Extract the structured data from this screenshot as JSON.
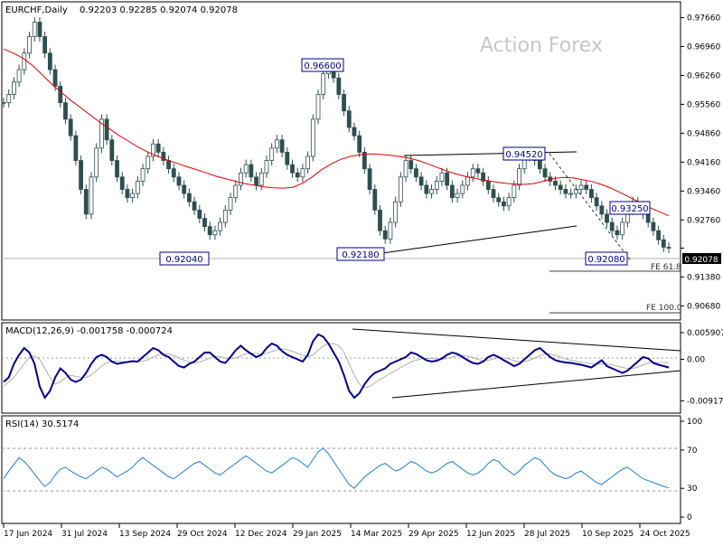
{
  "chart_data": [
    {
      "type": "candlestick",
      "symbol": "EURCHF,Daily",
      "ohlc_text": "0.92203 0.92285 0.92074 0.92078",
      "watermark": "Action Forex",
      "y_ticks": [
        "0.97660",
        "0.96960",
        "0.96260",
        "0.95560",
        "0.94860",
        "0.94160",
        "0.93460",
        "0.92760",
        "0.92078",
        "0.91380",
        "0.90680"
      ],
      "ylim": [
        0.9038,
        0.98
      ],
      "last_price": "0.92078",
      "last_value": 0.92078,
      "series": [
        {
          "name": "EURCHF",
          "values": [
            0.956,
            0.958,
            0.961,
            0.964,
            0.968,
            0.972,
            0.9755,
            0.972,
            0.968,
            0.964,
            0.96,
            0.956,
            0.952,
            0.948,
            0.942,
            0.935,
            0.929,
            0.938,
            0.945,
            0.952,
            0.947,
            0.942,
            0.938,
            0.935,
            0.933,
            0.934,
            0.937,
            0.94,
            0.943,
            0.946,
            0.944,
            0.942,
            0.94,
            0.938,
            0.936,
            0.934,
            0.932,
            0.93,
            0.928,
            0.926,
            0.924,
            0.925,
            0.927,
            0.93,
            0.933,
            0.936,
            0.939,
            0.941,
            0.938,
            0.936,
            0.939,
            0.942,
            0.945,
            0.947,
            0.944,
            0.941,
            0.939,
            0.938,
            0.94,
            0.943,
            0.952,
            0.958,
            0.963,
            0.965,
            0.962,
            0.958,
            0.954,
            0.95,
            0.948,
            0.944,
            0.94,
            0.935,
            0.93,
            0.925,
            0.923,
            0.927,
            0.932,
            0.938,
            0.942,
            0.94,
            0.938,
            0.936,
            0.934,
            0.935,
            0.937,
            0.939,
            0.936,
            0.933,
            0.934,
            0.936,
            0.938,
            0.94,
            0.939,
            0.937,
            0.935,
            0.933,
            0.932,
            0.931,
            0.933,
            0.936,
            0.94,
            0.943,
            0.944,
            0.942,
            0.94,
            0.938,
            0.937,
            0.936,
            0.935,
            0.934,
            0.934,
            0.935,
            0.936,
            0.935,
            0.933,
            0.931,
            0.929,
            0.927,
            0.925,
            0.924,
            0.927,
            0.93,
            0.932,
            0.931,
            0.929,
            0.927,
            0.925,
            0.9228,
            0.921,
            0.9208
          ]
        }
      ],
      "ma_values": [
        0.969,
        0.968,
        0.9668,
        0.965,
        0.9628,
        0.9605,
        0.9585,
        0.9565,
        0.9548,
        0.953,
        0.9512,
        0.9496,
        0.948,
        0.9466,
        0.9452,
        0.944,
        0.943,
        0.9421,
        0.9413,
        0.9405,
        0.9398,
        0.939,
        0.9382,
        0.9376,
        0.937,
        0.9364,
        0.936,
        0.9356,
        0.9354,
        0.9353,
        0.9355,
        0.9365,
        0.938,
        0.9398,
        0.9412,
        0.9423,
        0.943,
        0.9434,
        0.9436,
        0.9435,
        0.9433,
        0.943,
        0.9426,
        0.942,
        0.9412,
        0.9403,
        0.9394,
        0.9387,
        0.9381,
        0.9376,
        0.9372,
        0.9368,
        0.9365,
        0.9363,
        0.9362,
        0.9364,
        0.937,
        0.9376,
        0.9379,
        0.9378,
        0.9374,
        0.9369,
        0.9362,
        0.9353,
        0.9342,
        0.933,
        0.9318,
        0.9306,
        0.9296,
        0.9286
      ],
      "annotations": [
        "0.96600",
        "0.92040",
        "0.92180",
        "0.94520",
        "0.93250",
        "0.92080",
        "FE 61.8",
        "FE 100.0"
      ],
      "fe_levels": [
        0.918,
        0.9095
      ],
      "x_ticks": [
        "17 Jun 2024",
        "31 Jul 2024",
        "13 Sep 2024",
        "29 Oct 2024",
        "12 Dec 2024",
        "29 Jan 2025",
        "14 Mar 2025",
        "29 Apr 2025",
        "12 Jun 2025",
        "28 Jul 2025",
        "10 Sep 2025",
        "24 Oct 2025"
      ]
    },
    {
      "type": "line",
      "title": "MACD(12,26,9) -0.001758 -0.000724",
      "y_ticks": [
        "0.005907",
        "0.00",
        "-0.009175"
      ],
      "ylim": [
        -0.0115,
        0.0075
      ],
      "series": [
        {
          "values": [
            -0.005,
            -0.004,
            -0.001,
            0.001,
            0.0025,
            0.0015,
            -0.001,
            -0.006,
            -0.0085,
            -0.007,
            -0.004,
            -0.002,
            -0.003,
            -0.0045,
            -0.005,
            -0.0045,
            -0.003,
            -0.001,
            0.0005,
            0.001,
            0.0005,
            -0.0005,
            -0.001,
            -0.0008,
            -0.0006,
            -0.0004,
            -0.0005,
            0.0005,
            0.0015,
            0.0025,
            0.002,
            0.001,
            0.0005,
            -0.0005,
            -0.0015,
            -0.0018,
            -0.001,
            -0.0005,
            0.0005,
            0.0015,
            0.0015,
            0.0005,
            -0.0005,
            -0.0008,
            0.0005,
            0.002,
            0.003,
            0.002,
            0.0012,
            0.0005,
            0.001,
            0.0025,
            0.0035,
            0.003,
            0.0018,
            0.001,
            0.0005,
            0.0,
            -0.0005,
            0.001,
            0.004,
            0.0055,
            0.005,
            0.0035,
            0.0015,
            -0.0005,
            -0.0035,
            -0.007,
            -0.0085,
            -0.0075,
            -0.0055,
            -0.004,
            -0.003,
            -0.0025,
            -0.002,
            -0.001,
            -0.0005,
            0.0,
            0.0005,
            0.0015,
            0.0012,
            0.0005,
            -0.0002,
            -0.0005,
            -0.0003,
            0.0002,
            0.001,
            0.0015,
            0.0012,
            0.0005,
            -0.0002,
            -0.0008,
            -0.001,
            -0.0005,
            0.0005,
            0.001,
            0.0005,
            -0.0002,
            -0.0008,
            -0.0015,
            -0.001,
            0.0,
            0.001,
            0.002,
            0.0025,
            0.0015,
            0.0005,
            -0.0002,
            -0.0005,
            -0.0007,
            -0.0008,
            -0.001,
            -0.0012,
            -0.0015,
            -0.0018,
            -0.001,
            -0.0002,
            -0.0015,
            -0.002,
            -0.0025,
            -0.003,
            -0.0025,
            -0.0015,
            -0.0005,
            0.0005,
            0.0002,
            -0.0008,
            -0.0012,
            -0.0015,
            -0.0018
          ]
        },
        {
          "values": [
            -0.006,
            -0.005,
            -0.004,
            -0.0025,
            -0.001,
            0.0005,
            0.0008,
            0.0,
            -0.002,
            -0.004,
            -0.0055,
            -0.005,
            -0.004,
            -0.0035,
            -0.0038,
            -0.004,
            -0.004,
            -0.0035,
            -0.0025,
            -0.0015,
            -0.0008,
            -0.0004,
            -0.0004,
            -0.0005,
            -0.0006,
            -0.0006,
            -0.0005,
            -0.0004,
            -0.0001,
            0.0005,
            0.001,
            0.0013,
            0.0012,
            0.0008,
            0.0003,
            -0.0002,
            -0.0006,
            -0.0008,
            -0.0006,
            -0.0002,
            0.0003,
            0.0007,
            0.0006,
            0.0003,
            0.0001,
            0.0003,
            0.0008,
            0.0012,
            0.0014,
            0.0013,
            0.0012,
            0.0013,
            0.0017,
            0.0021,
            0.0023,
            0.0021,
            0.0018,
            0.0013,
            0.0009,
            0.0006,
            0.001,
            0.002,
            0.003,
            0.0035,
            0.0035,
            0.003,
            0.0015,
            -0.001,
            -0.0035,
            -0.0055,
            -0.0062,
            -0.006,
            -0.0052,
            -0.0044,
            -0.0038,
            -0.0031,
            -0.0025,
            -0.0018,
            -0.0012,
            -0.0006,
            -0.0002,
            0.0001,
            0.0002,
            0.0002,
            0.0001,
            0.0,
            0.0002,
            0.0005,
            0.0008,
            0.0009,
            0.0007,
            0.0004,
            0.0,
            -0.0003,
            -0.0002,
            0.0001,
            0.0003,
            0.0003,
            0.0001,
            -0.0003,
            -0.0005,
            -0.0005,
            -0.0002,
            0.0003,
            0.0008,
            0.0012,
            0.0012,
            0.0009,
            0.0005,
            0.0001,
            -0.0002,
            -0.0004,
            -0.0006,
            -0.0008,
            -0.001,
            -0.0011,
            -0.001,
            -0.001,
            -0.0012,
            -0.0015,
            -0.0018,
            -0.002,
            -0.002,
            -0.0017,
            -0.0012,
            -0.0008,
            -0.0007,
            -0.0007,
            -0.0007,
            -0.0007
          ]
        }
      ]
    },
    {
      "type": "line",
      "title": "RSI(14) 30.5174",
      "y_ticks": [
        "100",
        "70",
        "30",
        "0"
      ],
      "ylim": [
        0,
        100
      ],
      "series": [
        {
          "values": [
            40,
            48,
            55,
            62,
            58,
            52,
            45,
            38,
            32,
            36,
            44,
            50,
            52,
            48,
            45,
            42,
            40,
            44,
            48,
            52,
            50,
            46,
            42,
            45,
            48,
            52,
            58,
            62,
            58,
            54,
            50,
            46,
            42,
            40,
            44,
            48,
            52,
            56,
            58,
            54,
            50,
            46,
            44,
            48,
            52,
            56,
            60,
            64,
            60,
            56,
            52,
            48,
            46,
            50,
            54,
            58,
            62,
            60,
            56,
            52,
            60,
            68,
            72,
            66,
            58,
            50,
            42,
            34,
            30,
            36,
            42,
            46,
            50,
            54,
            56,
            52,
            48,
            50,
            54,
            58,
            56,
            52,
            48,
            46,
            48,
            52,
            56,
            58,
            54,
            50,
            46,
            44,
            46,
            50,
            56,
            60,
            58,
            52,
            48,
            44,
            48,
            54,
            58,
            62,
            60,
            54,
            48,
            44,
            42,
            40,
            42,
            46,
            48,
            44,
            40,
            36,
            34,
            38,
            42,
            46,
            50,
            52,
            48,
            44,
            40,
            38,
            36,
            34,
            32,
            30.5
          ]
        }
      ]
    }
  ]
}
